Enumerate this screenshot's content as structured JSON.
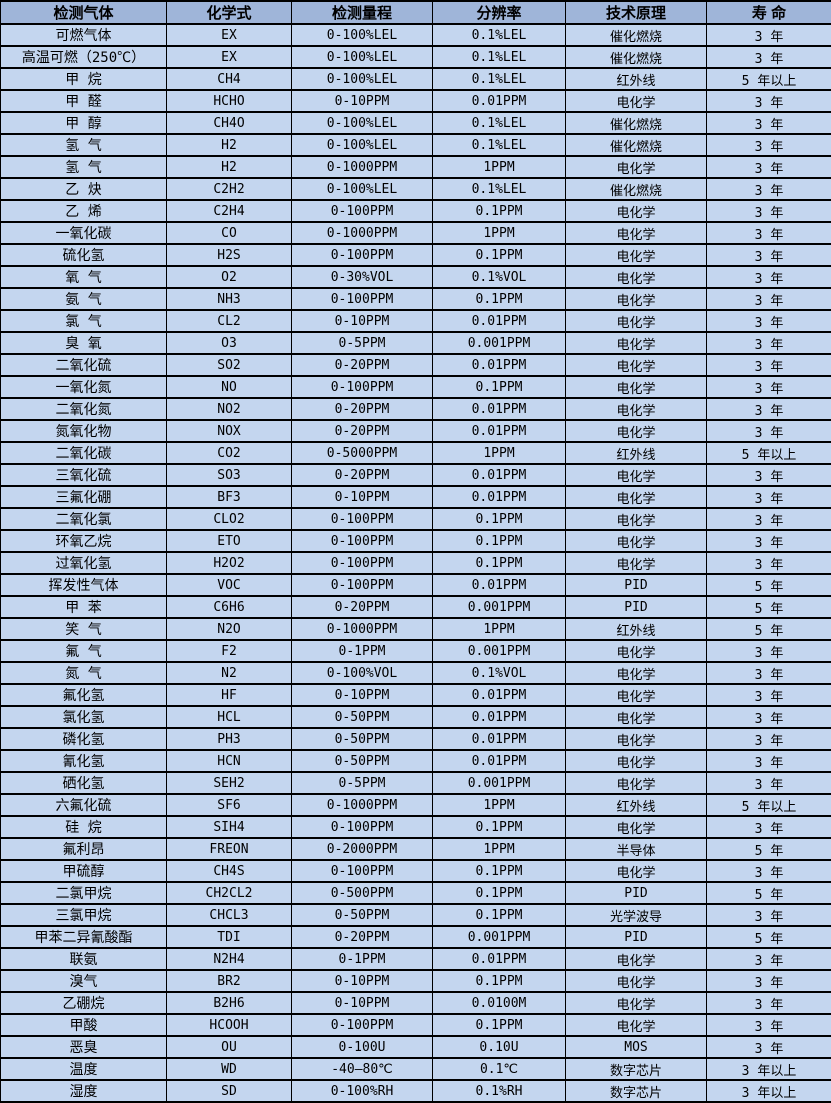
{
  "colors": {
    "header_bg": "#9fb5d9",
    "row_bg": "#c4d6ef",
    "border": "#000000",
    "text": "#000000",
    "page_bg": "#ffffff"
  },
  "table": {
    "columns": [
      "检测气体",
      "化学式",
      "检测量程",
      "分辨率",
      "技术原理",
      "寿 命"
    ],
    "column_keys": [
      "gas",
      "formula",
      "range",
      "resolution",
      "principle",
      "lifespan"
    ],
    "rows": [
      [
        "可燃气体",
        "EX",
        "0-100%LEL",
        "0.1%LEL",
        "催化燃烧",
        "3 年"
      ],
      [
        "高温可燃（250℃）",
        "EX",
        "0-100%LEL",
        "0.1%LEL",
        "催化燃烧",
        "3 年"
      ],
      [
        "甲 烷",
        "CH4",
        "0-100%LEL",
        "0.1%LEL",
        "红外线",
        "5 年以上"
      ],
      [
        "甲 醛",
        "HCHO",
        "0-10PPM",
        "0.01PPM",
        "电化学",
        "3 年"
      ],
      [
        "甲 醇",
        "CH4O",
        "0-100%LEL",
        "0.1%LEL",
        "催化燃烧",
        "3 年"
      ],
      [
        "氢 气",
        "H2",
        "0-100%LEL",
        "0.1%LEL",
        "催化燃烧",
        "3 年"
      ],
      [
        "氢 气",
        "H2",
        "0-1000PPM",
        "1PPM",
        "电化学",
        "3 年"
      ],
      [
        "乙 炔",
        "C2H2",
        "0-100%LEL",
        "0.1%LEL",
        "催化燃烧",
        "3 年"
      ],
      [
        "乙 烯",
        "C2H4",
        "0-100PPM",
        "0.1PPM",
        "电化学",
        "3 年"
      ],
      [
        "一氧化碳",
        "CO",
        "0-1000PPM",
        "1PPM",
        "电化学",
        "3 年"
      ],
      [
        "硫化氢",
        "H2S",
        "0-100PPM",
        "0.1PPM",
        "电化学",
        "3 年"
      ],
      [
        "氧 气",
        "O2",
        "0-30%VOL",
        "0.1%VOL",
        "电化学",
        "3 年"
      ],
      [
        "氨 气",
        "NH3",
        "0-100PPM",
        "0.1PPM",
        "电化学",
        "3 年"
      ],
      [
        "氯 气",
        "CL2",
        "0-10PPM",
        "0.01PPM",
        "电化学",
        "3 年"
      ],
      [
        "臭 氧",
        "O3",
        "0-5PPM",
        "0.001PPM",
        "电化学",
        "3 年"
      ],
      [
        "二氧化硫",
        "SO2",
        "0-20PPM",
        "0.01PPM",
        "电化学",
        "3 年"
      ],
      [
        "一氧化氮",
        "NO",
        "0-100PPM",
        "0.1PPM",
        "电化学",
        "3 年"
      ],
      [
        "二氧化氮",
        "NO2",
        "0-20PPM",
        "0.01PPM",
        "电化学",
        "3 年"
      ],
      [
        "氮氧化物",
        "NOX",
        "0-20PPM",
        "0.01PPM",
        "电化学",
        "3 年"
      ],
      [
        "二氧化碳",
        "CO2",
        "0-5000PPM",
        "1PPM",
        "红外线",
        "5 年以上"
      ],
      [
        "三氧化硫",
        "SO3",
        "0-20PPM",
        "0.01PPM",
        "电化学",
        "3 年"
      ],
      [
        "三氟化硼",
        "BF3",
        "0-10PPM",
        "0.01PPM",
        "电化学",
        "3 年"
      ],
      [
        "二氧化氯",
        "CLO2",
        "0-100PPM",
        "0.1PPM",
        "电化学",
        "3 年"
      ],
      [
        "环氧乙烷",
        "ETO",
        "0-100PPM",
        "0.1PPM",
        "电化学",
        "3 年"
      ],
      [
        "过氧化氢",
        "H2O2",
        "0-100PPM",
        "0.1PPM",
        "电化学",
        "3 年"
      ],
      [
        "挥发性气体",
        "VOC",
        "0-100PPM",
        "0.01PPM",
        "PID",
        "5 年"
      ],
      [
        "甲 苯",
        "C6H6",
        "0-20PPM",
        "0.001PPM",
        "PID",
        "5 年"
      ],
      [
        "笑 气",
        "N2O",
        "0-1000PPM",
        "1PPM",
        "红外线",
        "5 年"
      ],
      [
        "氟 气",
        "F2",
        "0-1PPM",
        "0.001PPM",
        "电化学",
        "3 年"
      ],
      [
        "氮 气",
        "N2",
        "0-100%VOL",
        "0.1%VOL",
        "电化学",
        "3 年"
      ],
      [
        "氟化氢",
        "HF",
        "0-10PPM",
        "0.01PPM",
        "电化学",
        "3 年"
      ],
      [
        "氯化氢",
        "HCL",
        "0-50PPM",
        "0.01PPM",
        "电化学",
        "3 年"
      ],
      [
        "磷化氢",
        "PH3",
        "0-50PPM",
        "0.01PPM",
        "电化学",
        "3 年"
      ],
      [
        "氰化氢",
        "HCN",
        "0-50PPM",
        "0.01PPM",
        "电化学",
        "3 年"
      ],
      [
        "硒化氢",
        "SEH2",
        "0-5PPM",
        "0.001PPM",
        "电化学",
        "3 年"
      ],
      [
        "六氟化硫",
        "SF6",
        "0-1000PPM",
        "1PPM",
        "红外线",
        "5 年以上"
      ],
      [
        "硅 烷",
        "SIH4",
        "0-100PPM",
        "0.1PPM",
        "电化学",
        "3 年"
      ],
      [
        "氟利昂",
        "FREON",
        "0-2000PPM",
        "1PPM",
        "半导体",
        "5 年"
      ],
      [
        "甲硫醇",
        "CH4S",
        "0-100PPM",
        "0.1PPM",
        "电化学",
        "3 年"
      ],
      [
        "二氯甲烷",
        "CH2CL2",
        "0-500PPM",
        "0.1PPM",
        "PID",
        "5 年"
      ],
      [
        "三氯甲烷",
        "CHCL3",
        "0-50PPM",
        "0.1PPM",
        "光学波导",
        "3 年"
      ],
      [
        "甲苯二异氰酸酯",
        "TDI",
        "0-20PPM",
        "0.001PPM",
        "PID",
        "5 年"
      ],
      [
        "联氨",
        "N2H4",
        "0-1PPM",
        "0.01PPM",
        "电化学",
        "3 年"
      ],
      [
        "溴气",
        "BR2",
        "0-10PPM",
        "0.1PPM",
        "电化学",
        "3 年"
      ],
      [
        "乙硼烷",
        "B2H6",
        "0-10PPM",
        "0.0100M",
        "电化学",
        "3 年"
      ],
      [
        "甲酸",
        "HCOOH",
        "0-100PPM",
        "0.1PPM",
        "电化学",
        "3 年"
      ],
      [
        "恶臭",
        "OU",
        "0-100U",
        "0.10U",
        "MOS",
        "3 年"
      ],
      [
        "温度",
        "WD",
        "-40—80℃",
        "0.1℃",
        "数字芯片",
        "3 年以上"
      ],
      [
        "湿度",
        "SD",
        "0-100%RH",
        "0.1%RH",
        "数字芯片",
        "3 年以上"
      ]
    ]
  }
}
